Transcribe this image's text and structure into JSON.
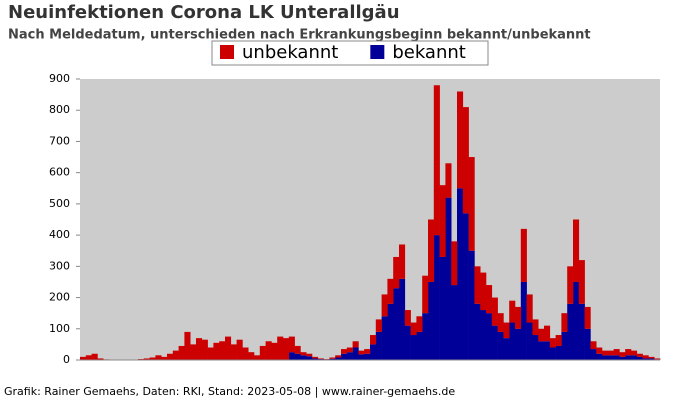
{
  "chart_data": {
    "type": "stacked-bar",
    "title": "Neuinfektionen Corona LK Unterallgäu",
    "subtitle": "Nach Meldedatum, unterschieden nach Erkrankungsbeginn bekannt/unbekannt",
    "footer": "Grafik: Rainer Gemaehs, Daten: RKI, Stand: 2023-05-08 | www.rainer-gemaehs.de",
    "categories": [
      null,
      null,
      null,
      null,
      null,
      null,
      null,
      null,
      null,
      null,
      null,
      null,
      null,
      null,
      null,
      null,
      null,
      null,
      null,
      null,
      null,
      null,
      null,
      null,
      null,
      null,
      null,
      null,
      null,
      null,
      null,
      null,
      null,
      null,
      null,
      null,
      null,
      null,
      null,
      null,
      null,
      null,
      null,
      null,
      null,
      null,
      null,
      null,
      null,
      null,
      null,
      null,
      null,
      null,
      null,
      null,
      null,
      null,
      null,
      null,
      null,
      null,
      null,
      null,
      null,
      null,
      null,
      null,
      null,
      null,
      null,
      null,
      null,
      null,
      null,
      null,
      null,
      null,
      null,
      null,
      null,
      null,
      null,
      null,
      null,
      null,
      null,
      null,
      null,
      null,
      null,
      null,
      null,
      null,
      null,
      null,
      null,
      null,
      null,
      null
    ],
    "series": [
      {
        "name": "unbekannt",
        "color": "#cc0000",
        "values": [
          10,
          15,
          20,
          5,
          2,
          0,
          0,
          0,
          0,
          1,
          3,
          5,
          8,
          15,
          10,
          20,
          30,
          45,
          90,
          50,
          70,
          65,
          40,
          55,
          60,
          75,
          50,
          65,
          40,
          25,
          15,
          45,
          60,
          55,
          75,
          70,
          50,
          25,
          10,
          8,
          5,
          2,
          1,
          4,
          7,
          15,
          15,
          20,
          12,
          15,
          30,
          40,
          70,
          80,
          100,
          110,
          50,
          40,
          50,
          120,
          200,
          480,
          230,
          110,
          140,
          310,
          340,
          300,
          120,
          120,
          90,
          90,
          60,
          50,
          70,
          70,
          170,
          90,
          50,
          40,
          50,
          30,
          35,
          60,
          120,
          200,
          140,
          70,
          25,
          20,
          15,
          15,
          20,
          15,
          20,
          15,
          10,
          10,
          5,
          3
        ]
      },
      {
        "name": "bekannt",
        "color": "#000099",
        "values": [
          0,
          0,
          0,
          0,
          0,
          0,
          0,
          0,
          0,
          0,
          0,
          0,
          0,
          0,
          0,
          0,
          0,
          0,
          0,
          0,
          0,
          0,
          0,
          0,
          0,
          0,
          0,
          0,
          0,
          0,
          0,
          0,
          0,
          0,
          0,
          0,
          25,
          20,
          15,
          12,
          5,
          3,
          2,
          4,
          8,
          20,
          25,
          40,
          18,
          20,
          50,
          90,
          140,
          180,
          230,
          260,
          110,
          80,
          90,
          150,
          250,
          400,
          330,
          520,
          240,
          550,
          470,
          350,
          180,
          160,
          150,
          110,
          90,
          70,
          120,
          100,
          250,
          120,
          80,
          60,
          60,
          40,
          45,
          90,
          180,
          250,
          180,
          100,
          35,
          20,
          15,
          15,
          15,
          10,
          15,
          15,
          10,
          5,
          5,
          2
        ]
      }
    ],
    "ylim": [
      0,
      900
    ],
    "yticks": [
      0,
      100,
      200,
      300,
      400,
      500,
      600,
      700,
      800,
      900
    ],
    "grid": false
  }
}
